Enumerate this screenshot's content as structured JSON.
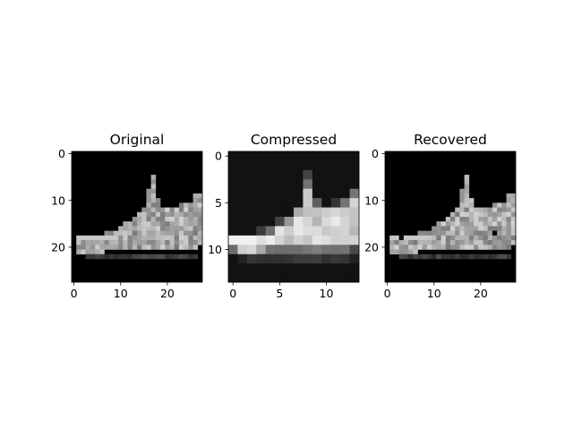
{
  "figure": {
    "background": "#ffffff"
  },
  "chart_data": [
    {
      "type": "heatmap",
      "title": "Original",
      "colormap": "gray",
      "image_shape": [
        28,
        28
      ],
      "xlim": [
        -0.5,
        27.5
      ],
      "ylim": [
        27.5,
        -0.5
      ],
      "xticks": [
        0,
        10,
        20
      ],
      "yticks": [
        0,
        10,
        20
      ],
      "xtick_labels": [
        "0",
        "10",
        "20"
      ],
      "ytick_labels": [
        "0",
        "10",
        "20"
      ],
      "description_of_content": "sneaker silhouette facing right, light gray on black"
    },
    {
      "type": "heatmap",
      "title": "Compressed",
      "colormap": "gray",
      "image_shape": [
        14,
        14
      ],
      "xlim": [
        -0.5,
        13.5
      ],
      "ylim": [
        13.5,
        -0.5
      ],
      "xticks": [
        0,
        5,
        10
      ],
      "yticks": [
        0,
        5,
        10
      ],
      "xtick_labels": [
        "0",
        "5",
        "10"
      ],
      "ytick_labels": [
        "0",
        "5",
        "10"
      ]
    },
    {
      "type": "heatmap",
      "title": "Recovered",
      "colormap": "gray",
      "image_shape": [
        28,
        28
      ],
      "xlim": [
        -0.5,
        27.5
      ],
      "ylim": [
        27.5,
        -0.5
      ],
      "xticks": [
        0,
        10,
        20
      ],
      "yticks": [
        0,
        10,
        20
      ],
      "xtick_labels": [
        "0",
        "10",
        "20"
      ],
      "ytick_labels": [
        "0",
        "10",
        "20"
      ]
    }
  ]
}
